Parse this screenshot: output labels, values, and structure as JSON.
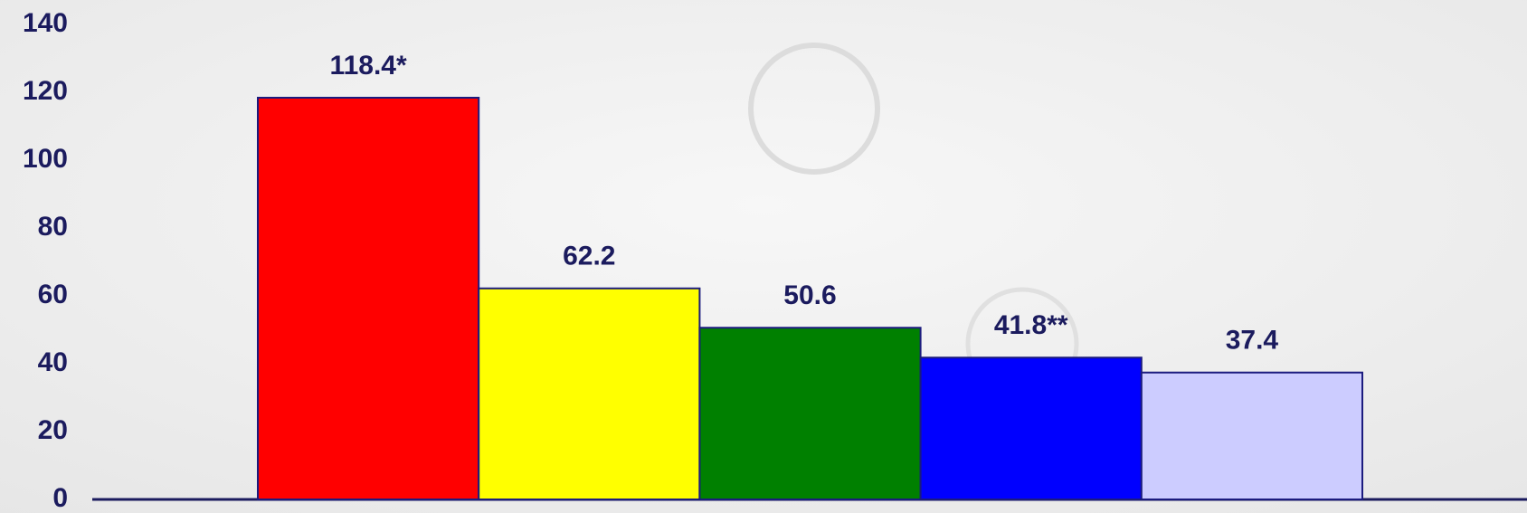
{
  "chart_data": {
    "type": "bar",
    "categories": [
      null,
      null,
      null,
      null,
      null
    ],
    "values": [
      118.4,
      62.2,
      50.6,
      41.8,
      37.4
    ],
    "value_labels": [
      "118.4*",
      "62.2",
      "50.6",
      "41.8**",
      "37.4"
    ],
    "colors": [
      "#ff0000",
      "#ffff00",
      "#008000",
      "#0000ff",
      "#ccccff"
    ],
    "ylim": [
      0,
      140
    ],
    "yticks": [
      0,
      20,
      40,
      60,
      80,
      100,
      120,
      140
    ],
    "grid": false
  }
}
